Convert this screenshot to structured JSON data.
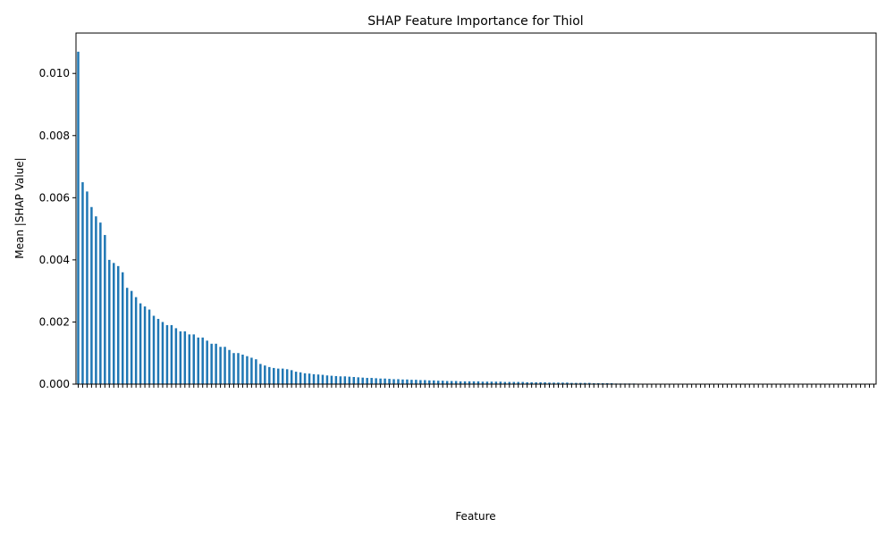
{
  "chart_data": {
    "type": "bar",
    "title": "SHAP Feature Importance for Thiol",
    "x_label": "Feature",
    "y_label": "Mean |SHAP Value|",
    "color": "#1f77b4",
    "categories": [
      null,
      null,
      null,
      null,
      null,
      null,
      null,
      null,
      null,
      null,
      null,
      null,
      null,
      null,
      null,
      null,
      null,
      null,
      null,
      null,
      null,
      null,
      null,
      null,
      null,
      null,
      null,
      null,
      null,
      null,
      null,
      null,
      null,
      null,
      null,
      null,
      null,
      null,
      null,
      null,
      null,
      null,
      null,
      null,
      null,
      null,
      null,
      null,
      null,
      null,
      null,
      null,
      null,
      null,
      null,
      null,
      null,
      null,
      null,
      null,
      null,
      null,
      null,
      null,
      null,
      null,
      null,
      null,
      null,
      null,
      null,
      null,
      null,
      null,
      null,
      null,
      null,
      null,
      null,
      null,
      null,
      null,
      null,
      null,
      null,
      null,
      null,
      null,
      null,
      null,
      null,
      null,
      null,
      null,
      null,
      null,
      null,
      null,
      null,
      null,
      null,
      null,
      null,
      null,
      null,
      null,
      null,
      null,
      null,
      null,
      null,
      null,
      null,
      null,
      null,
      null,
      null,
      null,
      null,
      null,
      null,
      null,
      null,
      null,
      null,
      null,
      null,
      null,
      null,
      null,
      null,
      null,
      null,
      null,
      null,
      null,
      null,
      null,
      null,
      null,
      null,
      null,
      null,
      null,
      null,
      null,
      null,
      null,
      null,
      null,
      null,
      null,
      null,
      null,
      null,
      null,
      null,
      null,
      null,
      null,
      null,
      null,
      null,
      null,
      null,
      null,
      null,
      null,
      null,
      null,
      null,
      null,
      null,
      null,
      null,
      null,
      null,
      null,
      null,
      null
    ],
    "values": [
      0.0107,
      0.0065,
      0.0062,
      0.0057,
      0.0054,
      0.0052,
      0.0048,
      0.004,
      0.0039,
      0.0038,
      0.0036,
      0.0031,
      0.003,
      0.0028,
      0.0026,
      0.0025,
      0.0024,
      0.0022,
      0.0021,
      0.002,
      0.0019,
      0.0019,
      0.0018,
      0.0017,
      0.0017,
      0.0016,
      0.0016,
      0.0015,
      0.0015,
      0.0014,
      0.0013,
      0.0013,
      0.0012,
      0.0012,
      0.0011,
      0.001,
      0.001,
      0.00095,
      0.0009,
      0.00085,
      0.0008,
      0.00065,
      0.0006,
      0.00055,
      0.00052,
      0.0005,
      0.0005,
      0.00048,
      0.00045,
      0.0004,
      0.00038,
      0.00035,
      0.00034,
      0.00032,
      0.00031,
      0.0003,
      0.00028,
      0.00027,
      0.00026,
      0.00025,
      0.00025,
      0.00024,
      0.00023,
      0.00022,
      0.00021,
      0.0002,
      0.0002,
      0.00019,
      0.00018,
      0.00018,
      0.00017,
      0.00016,
      0.00016,
      0.00015,
      0.00015,
      0.00014,
      0.00014,
      0.00013,
      0.00013,
      0.00012,
      0.00012,
      0.00011,
      0.00011,
      0.0001,
      0.0001,
      0.0001,
      9e-05,
      9e-05,
      9e-05,
      9e-05,
      9e-05,
      8e-05,
      8e-05,
      8e-05,
      8e-05,
      8e-05,
      7e-05,
      7e-05,
      7e-05,
      7e-05,
      7e-05,
      6e-05,
      6e-05,
      6e-05,
      6e-05,
      6e-05,
      5e-05,
      5e-05,
      5e-05,
      5e-05,
      5e-05,
      4e-05,
      4e-05,
      4e-05,
      4e-05,
      4e-05,
      3e-05,
      3e-05,
      3e-05,
      3e-05,
      3e-05,
      2e-05,
      2e-05,
      2e-05,
      2e-05,
      2e-05,
      1e-05,
      1e-05,
      1e-05,
      1e-05,
      1e-05,
      1e-05,
      1e-05,
      1e-05,
      1e-05,
      1e-05,
      0,
      0,
      0,
      0,
      0,
      0,
      0,
      0,
      0,
      0,
      0,
      0,
      0,
      0,
      0,
      0,
      0,
      0,
      0,
      0,
      0,
      0,
      0,
      0,
      0,
      0,
      0,
      0,
      0,
      0,
      0,
      0,
      0,
      0,
      0,
      0,
      0,
      0,
      0,
      0,
      0,
      0,
      0,
      0
    ],
    "ylim": [
      0,
      0.0113
    ],
    "yticks": [
      {
        "value": 0,
        "label": "0.000"
      },
      {
        "value": 0.002,
        "label": "0.002"
      },
      {
        "value": 0.004,
        "label": "0.004"
      },
      {
        "value": 0.006,
        "label": "0.006"
      },
      {
        "value": 0.008,
        "label": "0.008"
      },
      {
        "value": 0.01,
        "label": "0.010"
      }
    ],
    "grid": false
  }
}
